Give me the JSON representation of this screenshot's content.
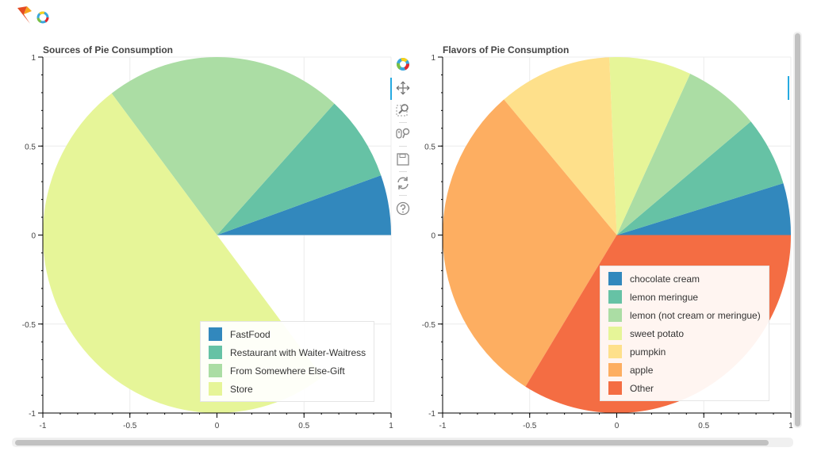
{
  "chart_data": [
    {
      "type": "pie",
      "title": "Sources of Pie Consumption",
      "categories": [
        "FastFood",
        "Restaurant with Waiter-Waitress",
        "From Somewhere Else-Gift",
        "Store"
      ],
      "values": [
        0.0545,
        0.0778,
        0.2211,
        0.5
      ],
      "colors": [
        "#3288bd",
        "#66c2a5",
        "#abdda4",
        "#e6f598"
      ],
      "xlim": [
        -1,
        1
      ],
      "ylim": [
        -1,
        1
      ],
      "xticks": [
        "-1",
        "-0.5",
        "0",
        "0.5",
        "1"
      ],
      "yticks": [
        "1",
        "0.5",
        "0",
        "-0.5",
        "-1"
      ],
      "legend_position": "bottom-right"
    },
    {
      "type": "pie",
      "title": "Flavors of Pie Consumption",
      "categories": [
        "chocolate cream",
        "lemon meringue",
        "lemon (not cream or meringue)",
        "sweet potato",
        "pumpkin",
        "apple",
        "Other"
      ],
      "values": [
        0.047,
        0.0631,
        0.0706,
        0.0761,
        0.1054,
        0.3,
        0.3378
      ],
      "colors": [
        "#3288bd",
        "#66c2a5",
        "#abdda4",
        "#e6f598",
        "#fee08b",
        "#fdae61",
        "#f46d43"
      ],
      "xlim": [
        -1,
        1
      ],
      "ylim": [
        -1,
        1
      ],
      "xticks": [
        "-1",
        "-0.5",
        "0",
        "0.5",
        "1"
      ],
      "yticks": [
        "1",
        "0.5",
        "0",
        "-0.5",
        "-1"
      ],
      "legend_position": "bottom-right"
    }
  ],
  "toolbar": {
    "tools": [
      "bokeh-logo-icon",
      "pan-icon",
      "box-zoom-icon",
      "wheel-zoom-icon",
      "save-icon",
      "reset-icon",
      "help-icon"
    ]
  }
}
